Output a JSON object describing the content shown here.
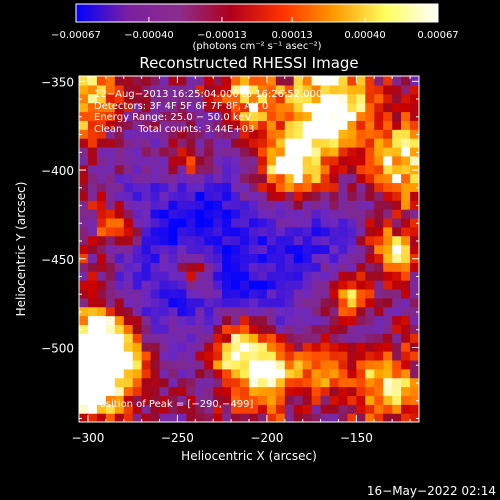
{
  "chart_data": {
    "type": "heatmap",
    "title": "Reconstructed RHESSI Image",
    "xlabel": "Heliocentric X (arcsec)",
    "ylabel": "Heliocentric Y (arcsec)",
    "xlim": [
      -305,
      -115
    ],
    "ylim": [
      -542,
      -347
    ],
    "x_ticks": [
      -300,
      -250,
      -200,
      -150
    ],
    "y_ticks": [
      -350,
      -400,
      -450,
      -500
    ],
    "x_tick_labels": [
      "−300",
      "−250",
      "−200",
      "−150"
    ],
    "y_tick_labels": [
      "−350",
      "−400",
      "−450",
      "−500"
    ],
    "colorbar": {
      "min": -0.00067,
      "max": 0.00067,
      "ticks": [
        -0.00067,
        -0.0004,
        -0.00013,
        0.00013,
        0.0004,
        0.00067
      ],
      "tick_labels": [
        "−0.00067",
        "−0.00040",
        "−0.00013",
        "0.00013",
        "0.00040",
        "0.00067"
      ],
      "unit_label": "(photons cm⁻² s⁻¹ asec⁻²)",
      "colors": [
        "#0000ff",
        "#7a1fa0",
        "#8b2d8b",
        "#b0001a",
        "#ff3300",
        "#ff9a00",
        "#ffff60",
        "#ffffff"
      ]
    },
    "annotations": [
      "12−Aug−2013 16:25:04.000 to 16:26:52.000",
      "Detectors: 3F 4F 5F 6F 7F 8F, Att 0",
      "Energy Range: 25.0 − 50.0 keV",
      "Clean     Total counts: 3.44E+03"
    ],
    "peak_label": "Position of Peak = [−290,−499]",
    "peak": [
      -290,
      -499
    ]
  },
  "footer": {
    "timestamp": "16−May−2022 02:14"
  }
}
